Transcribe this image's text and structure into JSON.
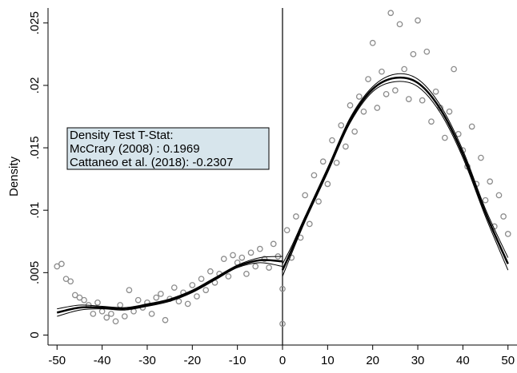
{
  "chart_data": {
    "type": "scatter",
    "ylabel": "Density",
    "xlim": [
      -52,
      52
    ],
    "ylim": [
      -0.0008,
      0.0262
    ],
    "xticks": [
      -50,
      -40,
      -30,
      -20,
      -10,
      0,
      10,
      20,
      30,
      40,
      50
    ],
    "yticks": [
      0,
      {
        "value": 0.005,
        "label": ".005"
      },
      {
        "value": 0.01,
        "label": ".01"
      },
      {
        "value": 0.015,
        "label": ".015"
      },
      {
        "value": 0.02,
        "label": ".02"
      },
      {
        "value": 0.025,
        "label": ".025"
      }
    ],
    "vline": 0,
    "annotation": [
      "Density Test T-Stat:",
      "McCrary (2008) : 0.1969",
      "Cattaneo et al. (2018): -0.2307"
    ],
    "series": [
      {
        "type": "scatter",
        "color": "#8c8c8c",
        "x": [
          -50,
          -49,
          -48,
          -47,
          -46,
          -45,
          -44,
          -43,
          -42,
          -41,
          -40,
          -39,
          -38,
          -37,
          -36,
          -35,
          -34,
          -33,
          -32,
          -31,
          -30,
          -29,
          -28,
          -27,
          -26,
          -25,
          -24,
          -23,
          -22,
          -21,
          -20,
          -19,
          -18,
          -17,
          -16,
          -15,
          -14,
          -13,
          -12,
          -11,
          -10,
          -9,
          -8,
          -7,
          -6,
          -5,
          -4,
          -3,
          -2,
          -1,
          0,
          0,
          1,
          2,
          3,
          4,
          5,
          6,
          7,
          8,
          9,
          10,
          11,
          12,
          13,
          14,
          15,
          16,
          17,
          18,
          19,
          20,
          21,
          22,
          23,
          24,
          25,
          26,
          27,
          28,
          29,
          30,
          31,
          32,
          33,
          34,
          35,
          36,
          37,
          38,
          39,
          40,
          41,
          42,
          43,
          44,
          45,
          46,
          47,
          48,
          49,
          50
        ],
        "values": [
          0.0055,
          0.0057,
          0.0045,
          0.0043,
          0.0032,
          0.003,
          0.0028,
          0.0024,
          0.0017,
          0.0026,
          0.0019,
          0.0014,
          0.0017,
          0.0011,
          0.0024,
          0.0015,
          0.0036,
          0.0019,
          0.0028,
          0.0022,
          0.0026,
          0.0017,
          0.003,
          0.0033,
          0.0012,
          0.0029,
          0.0038,
          0.0027,
          0.0034,
          0.0025,
          0.004,
          0.0031,
          0.0045,
          0.0036,
          0.0051,
          0.0042,
          0.0049,
          0.0061,
          0.0047,
          0.0064,
          0.0058,
          0.0062,
          0.0049,
          0.0066,
          0.0055,
          0.0069,
          0.0061,
          0.0054,
          0.0073,
          0.0063,
          0.0009,
          0.0037,
          0.0084,
          0.0062,
          0.0095,
          0.0078,
          0.0112,
          0.0089,
          0.0128,
          0.0107,
          0.0139,
          0.0121,
          0.0156,
          0.0138,
          0.0168,
          0.0151,
          0.0184,
          0.0163,
          0.0191,
          0.0179,
          0.0205,
          0.0234,
          0.0182,
          0.0211,
          0.0193,
          0.0258,
          0.0196,
          0.0249,
          0.0213,
          0.0189,
          0.0225,
          0.0252,
          0.0188,
          0.0227,
          0.0171,
          0.0195,
          0.0182,
          0.0158,
          0.0179,
          0.0213,
          0.0161,
          0.0148,
          0.0135,
          0.0167,
          0.0121,
          0.0142,
          0.0108,
          0.0123,
          0.0087,
          0.0112,
          0.0095,
          0.0081
        ]
      },
      {
        "type": "line",
        "color": "#000000",
        "width": 1,
        "x": [
          -50,
          -45,
          -40,
          -35,
          -30,
          -25,
          -20,
          -15,
          -10,
          -5,
          0
        ],
        "values": [
          0.0021,
          0.0024,
          0.0023,
          0.0022,
          0.0025,
          0.0029,
          0.0036,
          0.0046,
          0.0056,
          0.0062,
          0.0063
        ]
      },
      {
        "type": "line",
        "color": "#000000",
        "width": 1,
        "x": [
          -50,
          -45,
          -40,
          -35,
          -30,
          -25,
          -20,
          -15,
          -10,
          -5,
          0
        ],
        "values": [
          0.0015,
          0.002,
          0.0021,
          0.002,
          0.0023,
          0.0027,
          0.0034,
          0.0044,
          0.0054,
          0.0058,
          0.0055
        ]
      },
      {
        "type": "line",
        "color": "#000000",
        "width": 2.5,
        "x": [
          -50,
          -45,
          -40,
          -35,
          -30,
          -25,
          -20,
          -15,
          -10,
          -5,
          0
        ],
        "values": [
          0.0018,
          0.0022,
          0.0022,
          0.0021,
          0.0024,
          0.0028,
          0.0035,
          0.0045,
          0.0055,
          0.006,
          0.0059
        ]
      },
      {
        "type": "line",
        "color": "#000000",
        "width": 1,
        "x": [
          0,
          2,
          5,
          10,
          15,
          20,
          25,
          30,
          35,
          40,
          45,
          50
        ],
        "values": [
          0.0057,
          0.0071,
          0.0095,
          0.0134,
          0.0174,
          0.0199,
          0.0209,
          0.0205,
          0.0184,
          0.0148,
          0.0101,
          0.0062
        ]
      },
      {
        "type": "line",
        "color": "#000000",
        "width": 1,
        "x": [
          0,
          2,
          5,
          10,
          15,
          20,
          25,
          30,
          35,
          40,
          45,
          50
        ],
        "values": [
          0.0047,
          0.0065,
          0.0091,
          0.013,
          0.017,
          0.0195,
          0.0203,
          0.0199,
          0.0178,
          0.0142,
          0.0095,
          0.0052
        ]
      },
      {
        "type": "line",
        "color": "#000000",
        "width": 2.5,
        "x": [
          0,
          2,
          5,
          10,
          15,
          20,
          25,
          30,
          35,
          40,
          45,
          50
        ],
        "values": [
          0.0052,
          0.0068,
          0.0093,
          0.0132,
          0.0172,
          0.0197,
          0.0206,
          0.0202,
          0.0181,
          0.0145,
          0.0098,
          0.0057
        ]
      }
    ]
  }
}
